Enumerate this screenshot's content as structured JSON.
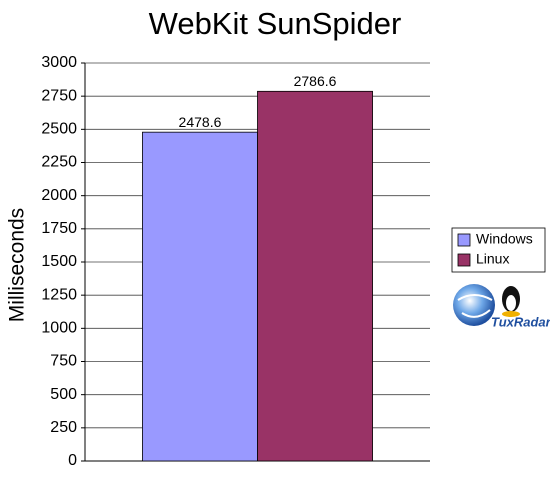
{
  "chart_data": {
    "type": "bar",
    "title": "WebKit SunSpider",
    "y_label": "Milliseconds",
    "categories": [
      null
    ],
    "series": [
      {
        "name": "Windows",
        "color": "#9999ff",
        "values": [
          2478.6
        ]
      },
      {
        "name": "Linux",
        "color": "#993366",
        "values": [
          2786.6
        ]
      }
    ],
    "ylim": [
      0,
      3000
    ],
    "yticks": [
      0,
      250,
      500,
      750,
      1000,
      1250,
      1500,
      1750,
      2000,
      2250,
      2500,
      2750,
      3000
    ],
    "grid": true,
    "legend": "right",
    "watermark": "TuxRadar"
  }
}
